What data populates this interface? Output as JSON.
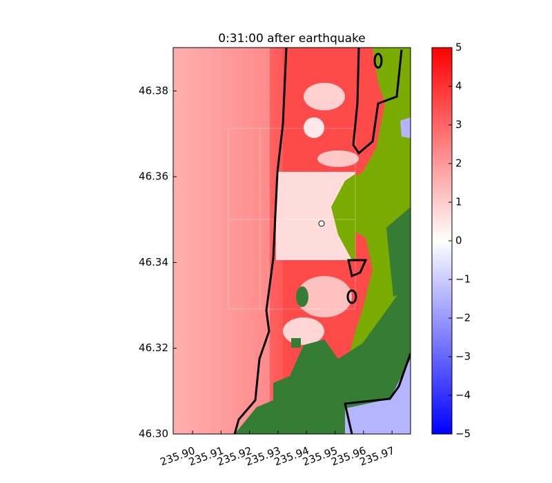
{
  "chart_data": {
    "type": "map",
    "title": "0:31:00 after earthquake",
    "xlim": [
      235.8932,
      235.9765
    ],
    "ylim": [
      46.3,
      46.3901
    ],
    "xticks": [
      {
        "value": 235.9,
        "label": "235.90"
      },
      235.91,
      235.92,
      235.93,
      235.94,
      235.95,
      235.96,
      235.97
    ],
    "yticks": [
      {
        "value": 46.3,
        "label": "46.30"
      },
      46.32,
      46.34,
      46.36,
      46.38
    ],
    "colorbar": {
      "lim": [
        -5,
        5
      ],
      "colors": [
        "#0000ff",
        "#ffffff",
        "#ff0000"
      ],
      "ticks": [
        {
          "value": -5,
          "label": "−5"
        },
        {
          "value": -4,
          "label": "−4"
        },
        {
          "value": -3,
          "label": "−3"
        },
        {
          "value": -2,
          "label": "−2"
        },
        {
          "value": -1,
          "label": "−1"
        },
        0,
        1,
        2,
        3,
        4,
        5
      ]
    }
  }
}
